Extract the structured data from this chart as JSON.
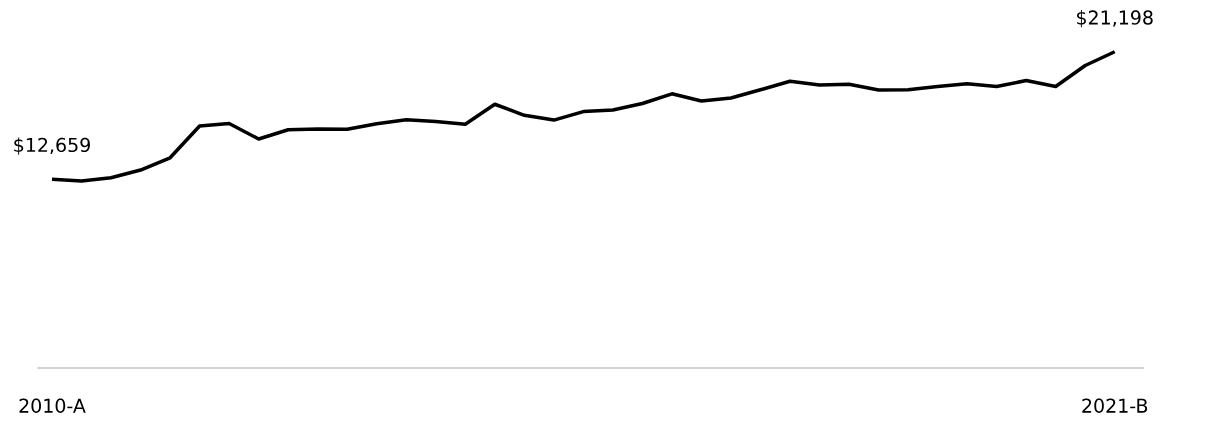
{
  "chart_data": {
    "type": "line",
    "categories": [
      "2010-A",
      null,
      null,
      null,
      null,
      null,
      null,
      null,
      null,
      null,
      null,
      null,
      null,
      null,
      null,
      null,
      null,
      null,
      null,
      null,
      null,
      null,
      null,
      null,
      null,
      null,
      null,
      null,
      null,
      null,
      null,
      null,
      null,
      null,
      null,
      null,
      "2021-B"
    ],
    "values": [
      12659,
      12530,
      12750,
      13270,
      14090,
      16220,
      16390,
      15350,
      15970,
      16020,
      16000,
      16370,
      16640,
      16520,
      16340,
      17680,
      16940,
      16620,
      17190,
      17290,
      17730,
      18380,
      17900,
      18100,
      18650,
      19220,
      18970,
      19020,
      18630,
      18650,
      18870,
      19050,
      18870,
      19270,
      18870,
      20280,
      21198
    ],
    "value_labels": [
      "$12,659",
      null,
      null,
      null,
      null,
      null,
      null,
      null,
      null,
      null,
      null,
      null,
      null,
      null,
      null,
      null,
      null,
      null,
      null,
      null,
      null,
      null,
      null,
      null,
      null,
      null,
      null,
      null,
      null,
      null,
      null,
      null,
      null,
      null,
      null,
      null,
      "$21,198"
    ],
    "color": "#000000"
  }
}
